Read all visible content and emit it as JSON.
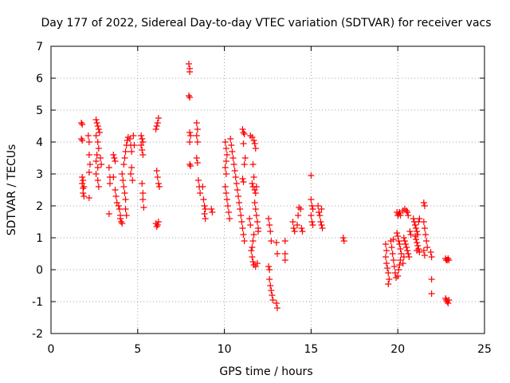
{
  "chart_data": {
    "type": "scatter",
    "title": "Day 177 of 2022, Sidereal Day-to-day VTEC variation (SDTVAR) for receiver vacs",
    "xlabel": "GPS time / hours",
    "ylabel": "SDTVAR / TECUs",
    "xlim": [
      0,
      25
    ],
    "ylim": [
      -2,
      7
    ],
    "x_ticks": [
      "0",
      "5",
      "10",
      "15",
      "20",
      "25"
    ],
    "y_ticks": [
      "-2",
      "-1",
      "0",
      "1",
      "2",
      "3",
      "4",
      "5",
      "6",
      "7"
    ],
    "grid": true,
    "marker": "+",
    "color": "#ff0000",
    "series": [
      {
        "name": "SDTVAR",
        "points": [
          [
            1.75,
            4.6
          ],
          [
            1.8,
            4.55
          ],
          [
            1.75,
            4.1
          ],
          [
            1.8,
            4.05
          ],
          [
            1.8,
            2.9
          ],
          [
            1.8,
            2.7
          ],
          [
            1.85,
            2.55
          ],
          [
            1.85,
            2.4
          ],
          [
            1.9,
            2.3
          ],
          [
            1.9,
            2.6
          ],
          [
            1.85,
            2.8
          ],
          [
            2.15,
            4.2
          ],
          [
            2.2,
            4.0
          ],
          [
            2.2,
            3.6
          ],
          [
            2.25,
            3.3
          ],
          [
            2.2,
            3.05
          ],
          [
            2.2,
            2.25
          ],
          [
            2.6,
            4.7
          ],
          [
            2.65,
            4.6
          ],
          [
            2.7,
            4.5
          ],
          [
            2.75,
            4.4
          ],
          [
            2.8,
            4.3
          ],
          [
            2.6,
            4.2
          ],
          [
            2.7,
            4.0
          ],
          [
            2.75,
            3.8
          ],
          [
            2.65,
            3.6
          ],
          [
            2.6,
            3.4
          ],
          [
            2.7,
            3.2
          ],
          [
            2.6,
            3.0
          ],
          [
            2.7,
            2.8
          ],
          [
            2.75,
            2.6
          ],
          [
            2.85,
            3.5
          ],
          [
            2.9,
            3.3
          ],
          [
            3.35,
            3.2
          ],
          [
            3.4,
            2.9
          ],
          [
            3.4,
            2.7
          ],
          [
            3.35,
            1.75
          ],
          [
            3.6,
            3.6
          ],
          [
            3.65,
            3.5
          ],
          [
            3.7,
            3.4
          ],
          [
            3.6,
            2.9
          ],
          [
            3.7,
            2.5
          ],
          [
            3.75,
            2.3
          ],
          [
            3.8,
            2.1
          ],
          [
            3.9,
            2.0
          ],
          [
            3.95,
            1.9
          ],
          [
            4.0,
            1.7
          ],
          [
            4.0,
            1.6
          ],
          [
            4.05,
            1.5
          ],
          [
            4.1,
            1.45
          ],
          [
            4.1,
            3.0
          ],
          [
            4.15,
            2.8
          ],
          [
            4.2,
            2.6
          ],
          [
            4.25,
            2.4
          ],
          [
            4.3,
            2.2
          ],
          [
            4.2,
            3.3
          ],
          [
            4.25,
            3.5
          ],
          [
            4.3,
            3.7
          ],
          [
            4.35,
            3.9
          ],
          [
            4.4,
            4.05
          ],
          [
            4.45,
            4.15
          ],
          [
            4.3,
            1.9
          ],
          [
            4.35,
            1.7
          ],
          [
            4.55,
            4.1
          ],
          [
            4.6,
            3.9
          ],
          [
            4.65,
            3.7
          ],
          [
            4.65,
            3.2
          ],
          [
            4.6,
            3.0
          ],
          [
            4.7,
            2.8
          ],
          [
            4.75,
            4.2
          ],
          [
            4.8,
            3.9
          ],
          [
            5.2,
            4.2
          ],
          [
            5.25,
            4.1
          ],
          [
            5.3,
            4.0
          ],
          [
            5.2,
            3.9
          ],
          [
            5.25,
            3.75
          ],
          [
            5.3,
            3.6
          ],
          [
            5.25,
            2.7
          ],
          [
            5.3,
            2.4
          ],
          [
            5.3,
            2.2
          ],
          [
            5.35,
            1.95
          ],
          [
            6.05,
            4.4
          ],
          [
            6.1,
            4.5
          ],
          [
            6.15,
            4.6
          ],
          [
            6.2,
            4.75
          ],
          [
            6.1,
            3.1
          ],
          [
            6.15,
            2.9
          ],
          [
            6.2,
            2.7
          ],
          [
            6.25,
            2.6
          ],
          [
            6.05,
            1.45
          ],
          [
            6.1,
            1.35
          ],
          [
            6.15,
            1.4
          ],
          [
            6.2,
            1.5
          ],
          [
            7.95,
            6.45
          ],
          [
            8.0,
            6.3
          ],
          [
            8.0,
            6.2
          ],
          [
            7.95,
            5.45
          ],
          [
            8.0,
            5.4
          ],
          [
            8.0,
            4.3
          ],
          [
            8.05,
            4.2
          ],
          [
            8.0,
            4.0
          ],
          [
            8.0,
            3.3
          ],
          [
            8.05,
            3.25
          ],
          [
            8.4,
            4.6
          ],
          [
            8.45,
            4.4
          ],
          [
            8.4,
            4.2
          ],
          [
            8.45,
            4.0
          ],
          [
            8.4,
            3.5
          ],
          [
            8.45,
            3.35
          ],
          [
            8.5,
            2.8
          ],
          [
            8.55,
            2.6
          ],
          [
            8.6,
            2.4
          ],
          [
            8.75,
            2.6
          ],
          [
            8.8,
            2.2
          ],
          [
            8.85,
            2.0
          ],
          [
            8.9,
            1.9
          ],
          [
            8.85,
            1.75
          ],
          [
            8.9,
            1.6
          ],
          [
            9.25,
            1.9
          ],
          [
            9.3,
            1.8
          ],
          [
            10.05,
            4.0
          ],
          [
            10.1,
            3.8
          ],
          [
            10.15,
            3.6
          ],
          [
            10.1,
            3.4
          ],
          [
            10.05,
            3.2
          ],
          [
            10.1,
            3.0
          ],
          [
            10.05,
            2.6
          ],
          [
            10.1,
            2.4
          ],
          [
            10.15,
            2.2
          ],
          [
            10.2,
            2.0
          ],
          [
            10.25,
            1.8
          ],
          [
            10.3,
            1.6
          ],
          [
            10.35,
            4.1
          ],
          [
            10.4,
            3.9
          ],
          [
            10.45,
            3.7
          ],
          [
            10.5,
            3.5
          ],
          [
            10.55,
            3.3
          ],
          [
            10.6,
            3.1
          ],
          [
            10.65,
            2.9
          ],
          [
            10.7,
            2.7
          ],
          [
            10.75,
            2.5
          ],
          [
            10.8,
            2.3
          ],
          [
            10.85,
            2.1
          ],
          [
            10.9,
            1.9
          ],
          [
            11.05,
            4.4
          ],
          [
            11.1,
            4.3
          ],
          [
            11.15,
            4.25
          ],
          [
            11.1,
            3.95
          ],
          [
            11.2,
            3.5
          ],
          [
            11.15,
            3.3
          ],
          [
            11.05,
            2.85
          ],
          [
            11.1,
            2.75
          ],
          [
            10.95,
            1.7
          ],
          [
            11.0,
            1.5
          ],
          [
            11.05,
            1.3
          ],
          [
            11.1,
            1.1
          ],
          [
            11.15,
            0.9
          ],
          [
            11.5,
            4.2
          ],
          [
            11.6,
            4.15
          ],
          [
            11.7,
            4.05
          ],
          [
            11.75,
            3.95
          ],
          [
            11.8,
            3.8
          ],
          [
            11.65,
            3.3
          ],
          [
            11.7,
            2.9
          ],
          [
            11.6,
            2.7
          ],
          [
            11.65,
            2.6
          ],
          [
            11.75,
            2.5
          ],
          [
            11.8,
            2.4
          ],
          [
            11.85,
            2.6
          ],
          [
            11.75,
            2.1
          ],
          [
            11.8,
            1.9
          ],
          [
            11.85,
            1.7
          ],
          [
            11.9,
            1.5
          ],
          [
            11.95,
            1.3
          ],
          [
            11.95,
            1.2
          ],
          [
            11.7,
            1.1
          ],
          [
            11.65,
            0.9
          ],
          [
            11.6,
            0.7
          ],
          [
            11.55,
            0.6
          ],
          [
            11.6,
            0.4
          ],
          [
            11.65,
            0.25
          ],
          [
            11.7,
            0.15
          ],
          [
            11.8,
            0.1
          ],
          [
            11.9,
            0.2
          ],
          [
            11.5,
            1.4
          ],
          [
            11.45,
            1.6
          ],
          [
            12.55,
            1.6
          ],
          [
            12.6,
            1.4
          ],
          [
            12.65,
            1.2
          ],
          [
            12.7,
            0.9
          ],
          [
            12.55,
            0.1
          ],
          [
            12.6,
            0.0
          ],
          [
            12.6,
            -0.3
          ],
          [
            12.65,
            -0.5
          ],
          [
            12.7,
            -0.65
          ],
          [
            12.75,
            -0.8
          ],
          [
            12.8,
            -0.95
          ],
          [
            13.0,
            -1.05
          ],
          [
            13.05,
            -1.2
          ],
          [
            13.0,
            0.85
          ],
          [
            13.05,
            0.5
          ],
          [
            13.5,
            0.9
          ],
          [
            13.5,
            0.5
          ],
          [
            13.5,
            0.3
          ],
          [
            13.95,
            1.5
          ],
          [
            14.0,
            1.3
          ],
          [
            14.05,
            1.2
          ],
          [
            14.2,
            1.4
          ],
          [
            14.25,
            1.7
          ],
          [
            14.3,
            1.95
          ],
          [
            14.4,
            1.9
          ],
          [
            14.45,
            1.3
          ],
          [
            14.5,
            1.2
          ],
          [
            15.0,
            2.95
          ],
          [
            15.0,
            2.2
          ],
          [
            15.05,
            2.0
          ],
          [
            15.1,
            1.9
          ],
          [
            15.0,
            1.7
          ],
          [
            15.05,
            1.5
          ],
          [
            15.1,
            1.4
          ],
          [
            15.4,
            2.0
          ],
          [
            15.45,
            1.8
          ],
          [
            15.5,
            1.7
          ],
          [
            15.55,
            1.5
          ],
          [
            15.6,
            1.4
          ],
          [
            15.65,
            1.3
          ],
          [
            15.6,
            1.9
          ],
          [
            16.85,
            1.0
          ],
          [
            16.9,
            0.9
          ],
          [
            19.3,
            0.8
          ],
          [
            19.35,
            0.6
          ],
          [
            19.3,
            0.4
          ],
          [
            19.35,
            0.2
          ],
          [
            19.4,
            0.05
          ],
          [
            19.45,
            -0.1
          ],
          [
            19.5,
            -0.3
          ],
          [
            19.45,
            -0.45
          ],
          [
            19.6,
            0.9
          ],
          [
            19.65,
            0.7
          ],
          [
            19.7,
            0.5
          ],
          [
            19.75,
            0.3
          ],
          [
            19.8,
            0.1
          ],
          [
            19.85,
            -0.1
          ],
          [
            19.9,
            -0.25
          ],
          [
            19.75,
            0.95
          ],
          [
            19.95,
            1.8
          ],
          [
            20.0,
            1.7
          ],
          [
            20.05,
            1.75
          ],
          [
            20.1,
            1.8
          ],
          [
            20.15,
            1.7
          ],
          [
            19.95,
            1.15
          ],
          [
            20.0,
            1.05
          ],
          [
            20.05,
            0.9
          ],
          [
            20.1,
            0.8
          ],
          [
            20.15,
            0.65
          ],
          [
            20.2,
            0.5
          ],
          [
            20.15,
            0.3
          ],
          [
            20.1,
            0.15
          ],
          [
            20.05,
            0.0
          ],
          [
            20.0,
            -0.2
          ],
          [
            20.3,
            1.85
          ],
          [
            20.4,
            1.9
          ],
          [
            20.5,
            1.85
          ],
          [
            20.55,
            1.8
          ],
          [
            20.6,
            1.7
          ],
          [
            20.35,
            1.0
          ],
          [
            20.4,
            0.9
          ],
          [
            20.45,
            0.8
          ],
          [
            20.5,
            0.7
          ],
          [
            20.55,
            0.6
          ],
          [
            20.6,
            0.5
          ],
          [
            20.65,
            0.4
          ],
          [
            20.3,
            0.2
          ],
          [
            20.35,
            0.4
          ],
          [
            20.7,
            1.2
          ],
          [
            20.75,
            1.1
          ],
          [
            20.9,
            1.6
          ],
          [
            20.95,
            1.5
          ],
          [
            21.0,
            1.4
          ],
          [
            21.05,
            1.3
          ],
          [
            21.1,
            1.2
          ],
          [
            21.15,
            1.1
          ],
          [
            21.0,
            1.05
          ],
          [
            21.05,
            0.95
          ],
          [
            21.1,
            0.85
          ],
          [
            21.15,
            0.75
          ],
          [
            21.2,
            0.65
          ],
          [
            21.25,
            0.55
          ],
          [
            21.1,
            0.6
          ],
          [
            21.2,
            1.5
          ],
          [
            21.25,
            1.6
          ],
          [
            21.5,
            2.1
          ],
          [
            21.55,
            2.0
          ],
          [
            21.5,
            1.5
          ],
          [
            21.55,
            1.3
          ],
          [
            21.6,
            1.1
          ],
          [
            21.65,
            0.9
          ],
          [
            21.7,
            0.7
          ],
          [
            21.5,
            0.6
          ],
          [
            21.55,
            0.45
          ],
          [
            21.9,
            0.55
          ],
          [
            21.95,
            0.4
          ],
          [
            21.95,
            -0.3
          ],
          [
            21.95,
            -0.75
          ],
          [
            22.75,
            0.35
          ],
          [
            22.8,
            0.3
          ],
          [
            22.85,
            0.3
          ],
          [
            22.9,
            0.35
          ],
          [
            22.95,
            0.3
          ],
          [
            22.75,
            -0.9
          ],
          [
            22.8,
            -0.95
          ],
          [
            22.85,
            -1.0
          ],
          [
            22.9,
            -1.05
          ],
          [
            22.95,
            -0.95
          ]
        ]
      }
    ]
  }
}
